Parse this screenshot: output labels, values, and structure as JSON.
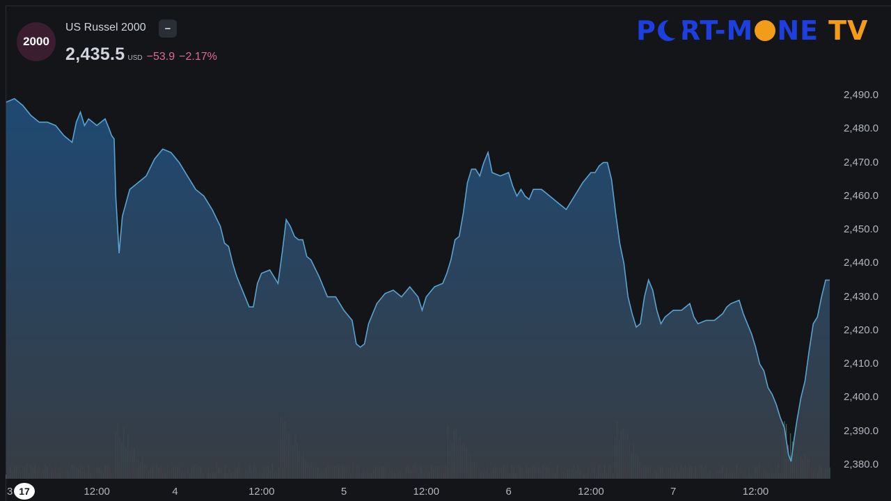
{
  "header": {
    "badge": "2000",
    "symbol": "US Russel 2000",
    "collapse": "−",
    "price": "2,435.5",
    "currency": "USD",
    "change": "−53.9",
    "change_pct": "−2.17%"
  },
  "logo": {
    "part1": "P",
    "part2": "RT-M",
    "part3": "NE",
    "part4": "TV"
  },
  "colors": {
    "line": "#5ba3d0",
    "area_top": "#1f4c78",
    "area_bottom": "#3b4148",
    "vol_up": "#5f9a84",
    "vol_down": "#9c4b6a",
    "down_text": "#e26a97"
  },
  "chart_data": {
    "type": "area",
    "ylim": [
      2378,
      2494
    ],
    "yticks": [
      "2,490.0",
      "2,480.0",
      "2,470.0",
      "2,460.0",
      "2,450.0",
      "2,440.0",
      "2,430.0",
      "2,420.0",
      "2,410.0",
      "2,400.0",
      "2,390.0",
      "2,380.0"
    ],
    "ytick_values": [
      2490,
      2480,
      2470,
      2460,
      2450,
      2440,
      2430,
      2420,
      2410,
      2400,
      2390,
      2380
    ],
    "xlabel_first": "3",
    "xticks": [
      {
        "t": 0.11,
        "label": "12:00"
      },
      {
        "t": 0.205,
        "label": "4"
      },
      {
        "t": 0.31,
        "label": "12:00"
      },
      {
        "t": 0.41,
        "label": "5"
      },
      {
        "t": 0.51,
        "label": "12:00"
      },
      {
        "t": 0.61,
        "label": "6"
      },
      {
        "t": 0.71,
        "label": "12:00"
      },
      {
        "t": 0.81,
        "label": "7"
      },
      {
        "t": 0.91,
        "label": "12:00"
      }
    ],
    "series": [
      {
        "points": [
          [
            0.0,
            2488
          ],
          [
            0.01,
            2489
          ],
          [
            0.02,
            2487
          ],
          [
            0.03,
            2484
          ],
          [
            0.04,
            2482
          ],
          [
            0.05,
            2482
          ],
          [
            0.06,
            2481
          ],
          [
            0.07,
            2478
          ],
          [
            0.08,
            2476
          ],
          [
            0.085,
            2482
          ],
          [
            0.09,
            2485
          ],
          [
            0.095,
            2481
          ],
          [
            0.1,
            2483
          ],
          [
            0.11,
            2481
          ],
          [
            0.12,
            2483
          ],
          [
            0.125,
            2480
          ],
          [
            0.128,
            2478
          ],
          [
            0.131,
            2477
          ],
          [
            0.133,
            2460
          ],
          [
            0.137,
            2443
          ],
          [
            0.141,
            2454
          ],
          [
            0.15,
            2462
          ],
          [
            0.16,
            2464
          ],
          [
            0.17,
            2466
          ],
          [
            0.18,
            2471
          ],
          [
            0.19,
            2474
          ],
          [
            0.2,
            2473
          ],
          [
            0.21,
            2470
          ],
          [
            0.22,
            2466
          ],
          [
            0.23,
            2462
          ],
          [
            0.24,
            2460
          ],
          [
            0.25,
            2456
          ],
          [
            0.26,
            2451
          ],
          [
            0.265,
            2446
          ],
          [
            0.27,
            2445
          ],
          [
            0.275,
            2440
          ],
          [
            0.28,
            2436
          ],
          [
            0.285,
            2433
          ],
          [
            0.29,
            2430
          ],
          [
            0.295,
            2427
          ],
          [
            0.3,
            2427
          ],
          [
            0.305,
            2434
          ],
          [
            0.31,
            2437
          ],
          [
            0.32,
            2438
          ],
          [
            0.325,
            2436
          ],
          [
            0.33,
            2434
          ],
          [
            0.335,
            2443
          ],
          [
            0.34,
            2453
          ],
          [
            0.345,
            2451
          ],
          [
            0.35,
            2448
          ],
          [
            0.355,
            2447
          ],
          [
            0.36,
            2447
          ],
          [
            0.365,
            2442
          ],
          [
            0.37,
            2441
          ],
          [
            0.38,
            2436
          ],
          [
            0.385,
            2433
          ],
          [
            0.39,
            2430
          ],
          [
            0.4,
            2430
          ],
          [
            0.41,
            2426
          ],
          [
            0.42,
            2423
          ],
          [
            0.425,
            2416
          ],
          [
            0.43,
            2415
          ],
          [
            0.435,
            2416
          ],
          [
            0.44,
            2422
          ],
          [
            0.445,
            2425
          ],
          [
            0.45,
            2428
          ],
          [
            0.46,
            2431
          ],
          [
            0.47,
            2432
          ],
          [
            0.48,
            2430
          ],
          [
            0.49,
            2433
          ],
          [
            0.5,
            2430
          ],
          [
            0.505,
            2426
          ],
          [
            0.51,
            2430
          ],
          [
            0.52,
            2433
          ],
          [
            0.53,
            2434
          ],
          [
            0.535,
            2437
          ],
          [
            0.54,
            2441
          ],
          [
            0.545,
            2447
          ],
          [
            0.55,
            2448
          ],
          [
            0.555,
            2455
          ],
          [
            0.56,
            2464
          ],
          [
            0.565,
            2468
          ],
          [
            0.57,
            2468
          ],
          [
            0.575,
            2466
          ],
          [
            0.58,
            2470
          ],
          [
            0.585,
            2473
          ],
          [
            0.59,
            2467
          ],
          [
            0.6,
            2466
          ],
          [
            0.61,
            2467
          ],
          [
            0.615,
            2463
          ],
          [
            0.62,
            2460
          ],
          [
            0.625,
            2462
          ],
          [
            0.63,
            2460
          ],
          [
            0.635,
            2459
          ],
          [
            0.64,
            2462
          ],
          [
            0.65,
            2462
          ],
          [
            0.66,
            2460
          ],
          [
            0.67,
            2458
          ],
          [
            0.675,
            2457
          ],
          [
            0.68,
            2456
          ],
          [
            0.69,
            2460
          ],
          [
            0.695,
            2462
          ],
          [
            0.7,
            2464
          ],
          [
            0.71,
            2467
          ],
          [
            0.715,
            2467
          ],
          [
            0.72,
            2469
          ],
          [
            0.725,
            2470
          ],
          [
            0.73,
            2470
          ],
          [
            0.735,
            2465
          ],
          [
            0.74,
            2455
          ],
          [
            0.745,
            2446
          ],
          [
            0.75,
            2440
          ],
          [
            0.755,
            2430
          ],
          [
            0.76,
            2425
          ],
          [
            0.765,
            2421
          ],
          [
            0.77,
            2422
          ],
          [
            0.775,
            2430
          ],
          [
            0.78,
            2435
          ],
          [
            0.785,
            2432
          ],
          [
            0.79,
            2426
          ],
          [
            0.795,
            2422
          ],
          [
            0.8,
            2424
          ],
          [
            0.81,
            2426
          ],
          [
            0.82,
            2426
          ],
          [
            0.83,
            2428
          ],
          [
            0.835,
            2424
          ],
          [
            0.84,
            2422
          ],
          [
            0.85,
            2423
          ],
          [
            0.86,
            2423
          ],
          [
            0.87,
            2425
          ],
          [
            0.875,
            2427
          ],
          [
            0.88,
            2428
          ],
          [
            0.89,
            2429
          ],
          [
            0.895,
            2425
          ],
          [
            0.9,
            2422
          ],
          [
            0.905,
            2419
          ],
          [
            0.91,
            2415
          ],
          [
            0.915,
            2410
          ],
          [
            0.92,
            2408
          ],
          [
            0.925,
            2403
          ],
          [
            0.93,
            2401
          ],
          [
            0.935,
            2398
          ],
          [
            0.94,
            2394
          ],
          [
            0.945,
            2391
          ],
          [
            0.95,
            2383
          ],
          [
            0.953,
            2381
          ],
          [
            0.957,
            2388
          ],
          [
            0.96,
            2393
          ],
          [
            0.965,
            2400
          ],
          [
            0.97,
            2405
          ],
          [
            0.975,
            2414
          ],
          [
            0.98,
            2422
          ],
          [
            0.985,
            2424
          ],
          [
            0.99,
            2430
          ],
          [
            0.995,
            2435
          ],
          [
            1.0,
            2435
          ]
        ]
      }
    ]
  }
}
